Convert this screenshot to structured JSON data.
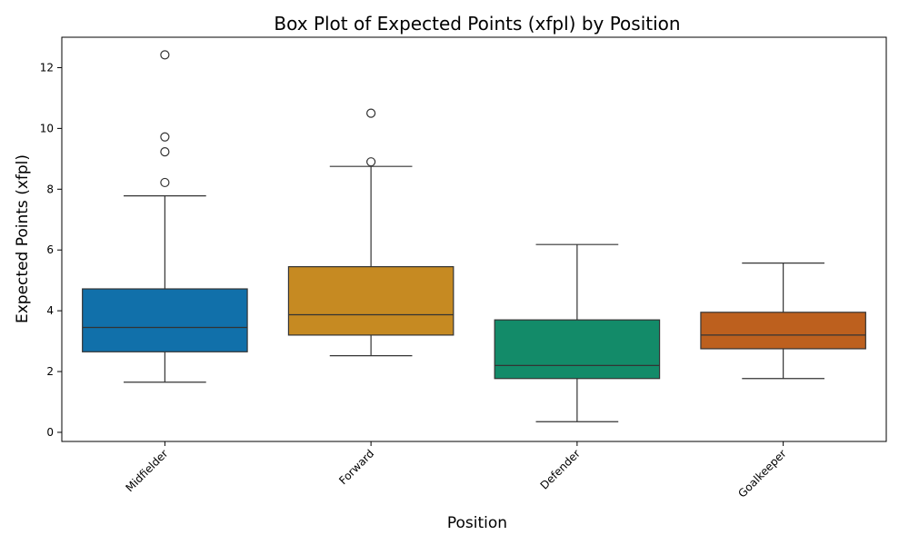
{
  "chart_data": {
    "type": "box",
    "title": "Box Plot of Expected Points (xfpl) by Position",
    "xlabel": "Position",
    "ylabel": "Expected Points (xfpl)",
    "ylim": [
      -0.3,
      13.0
    ],
    "yticks": [
      0,
      2,
      4,
      6,
      8,
      10,
      12
    ],
    "grid": false,
    "categories": [
      "Midfielder",
      "Forward",
      "Defender",
      "Goalkeeper"
    ],
    "series": [
      {
        "category": "Midfielder",
        "color": "#1170aa",
        "whisker_low": 1.65,
        "q1": 2.65,
        "median": 3.45,
        "q3": 4.72,
        "whisker_high": 7.78,
        "outliers": [
          8.22,
          9.23,
          9.72,
          12.42
        ]
      },
      {
        "category": "Forward",
        "color": "#c68a22",
        "whisker_low": 2.52,
        "q1": 3.2,
        "median": 3.87,
        "q3": 5.45,
        "whisker_high": 8.75,
        "outliers": [
          8.9,
          10.5
        ]
      },
      {
        "category": "Defender",
        "color": "#138b69",
        "whisker_low": 0.35,
        "q1": 1.77,
        "median": 2.2,
        "q3": 3.7,
        "whisker_high": 6.18,
        "outliers": []
      },
      {
        "category": "Goalkeeper",
        "color": "#bd601e",
        "whisker_low": 1.77,
        "q1": 2.75,
        "median": 3.2,
        "q3": 3.95,
        "whisker_high": 5.57,
        "outliers": []
      }
    ]
  }
}
